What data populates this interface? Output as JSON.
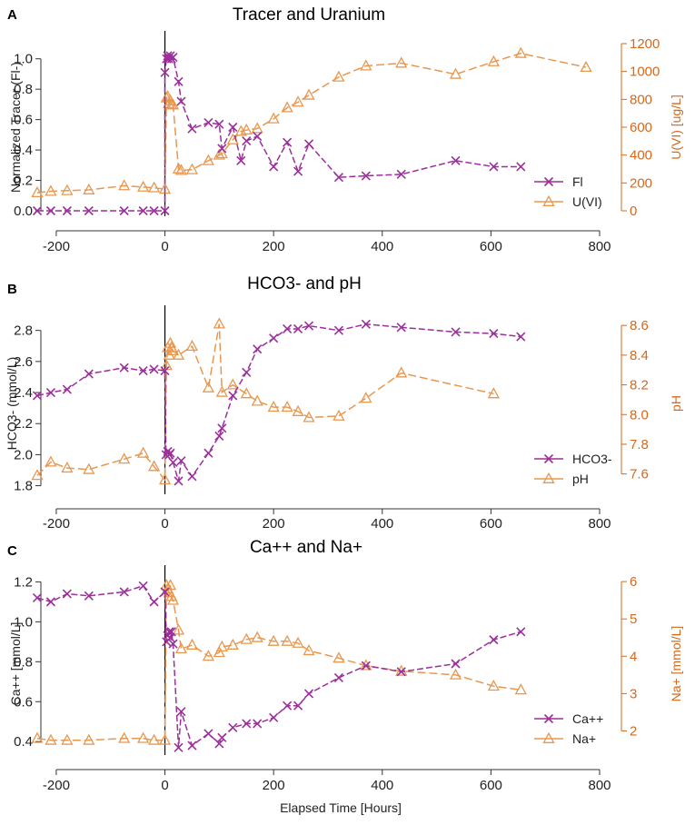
{
  "colors": {
    "primary": "#9b2f9b",
    "secondary": "#e8974f",
    "secondary_axis": "#d2691e",
    "vline": "#000000"
  },
  "xlabel": "Elapsed Time [Hours]",
  "chart_data": [
    {
      "type": "line",
      "letter": "A",
      "title": "Tracer and Uranium",
      "xlim": [
        -240,
        800
      ],
      "xticks": [
        -200,
        0,
        200,
        400,
        600,
        800
      ],
      "xtick_labels": [
        "-200",
        "0",
        "200",
        "400",
        "600",
        "800"
      ],
      "ylabel_left": "Normalized Tracer (Fl-)",
      "ylim_left": [
        0,
        1.1
      ],
      "yticks_left": [
        0.0,
        0.2,
        0.4,
        0.6,
        0.8,
        1.0
      ],
      "ytick_labels_left": [
        "0.0",
        "0.2",
        "0.4",
        "0.6",
        "0.8",
        "1.0"
      ],
      "ylabel_right": "U(VI) [ug/L]",
      "ylim_right": [
        0,
        1200
      ],
      "yticks_right": [
        0,
        200,
        400,
        600,
        800,
        1000,
        1200
      ],
      "ytick_labels_right": [
        "0",
        "200",
        "400",
        "600",
        "800",
        "1000",
        "1200"
      ],
      "legend_position": "bottom-right",
      "series": [
        {
          "name": "Fl",
          "axis": "left",
          "marker": "x",
          "x": [
            -235,
            -210,
            -180,
            -140,
            -75,
            -40,
            -20,
            0,
            0,
            3,
            5,
            7,
            10,
            12,
            15,
            25,
            30,
            50,
            80,
            100,
            105,
            125,
            140,
            150,
            170,
            200,
            225,
            245,
            265,
            320,
            370,
            435,
            535,
            605,
            655
          ],
          "y": [
            0.0,
            0.0,
            0.0,
            0.0,
            0.0,
            0.0,
            0.0,
            0.0,
            0.91,
            1.0,
            1.02,
            1.0,
            1.02,
            1.0,
            1.01,
            0.85,
            0.72,
            0.54,
            0.58,
            0.57,
            0.41,
            0.55,
            0.33,
            0.46,
            0.49,
            0.29,
            0.45,
            0.26,
            0.44,
            0.22,
            0.23,
            0.24,
            0.33,
            0.29,
            0.29
          ]
        },
        {
          "name": "U(VI)",
          "axis": "right",
          "marker": "triangle",
          "x": [
            -235,
            -210,
            -180,
            -140,
            -75,
            -40,
            -20,
            0,
            3,
            5,
            7,
            10,
            12,
            15,
            25,
            30,
            50,
            80,
            100,
            105,
            125,
            140,
            150,
            170,
            200,
            225,
            245,
            265,
            320,
            370,
            435,
            535,
            605,
            655,
            775
          ],
          "y": [
            130,
            140,
            145,
            150,
            180,
            170,
            165,
            155,
            810,
            820,
            770,
            790,
            760,
            760,
            300,
            290,
            295,
            360,
            400,
            410,
            510,
            570,
            580,
            590,
            660,
            740,
            780,
            830,
            960,
            1040,
            1060,
            980,
            1070,
            1130,
            1030
          ]
        }
      ]
    },
    {
      "type": "line",
      "letter": "B",
      "title": "HCO3- and pH",
      "xlim": [
        -240,
        800
      ],
      "xticks": [
        -200,
        0,
        200,
        400,
        600,
        800
      ],
      "xtick_labels": [
        "-200",
        "0",
        "200",
        "400",
        "600",
        "800"
      ],
      "ylabel_left": "HCO3- (mmol/L)",
      "ylim_left": [
        1.78,
        2.88
      ],
      "yticks_left": [
        1.8,
        2.0,
        2.2,
        2.4,
        2.6,
        2.8
      ],
      "ytick_labels_left": [
        "1.8",
        "2.0",
        "2.2",
        "2.4",
        "2.6",
        "2.8"
      ],
      "ylabel_right": "pH",
      "ylim_right": [
        7.5,
        8.65
      ],
      "yticks_right": [
        7.6,
        7.8,
        8.0,
        8.2,
        8.4,
        8.6
      ],
      "ytick_labels_right": [
        "7.6",
        "7.8",
        "8.0",
        "8.2",
        "8.4",
        "8.6"
      ],
      "legend_position": "bottom-right",
      "series": [
        {
          "name": "HCO3-",
          "axis": "left",
          "marker": "x",
          "x": [
            -235,
            -210,
            -180,
            -140,
            -75,
            -40,
            -20,
            0,
            2,
            5,
            8,
            10,
            15,
            25,
            30,
            50,
            80,
            100,
            105,
            125,
            150,
            170,
            200,
            225,
            245,
            265,
            320,
            370,
            435,
            535,
            605,
            655
          ],
          "y": [
            2.38,
            2.4,
            2.42,
            2.52,
            2.56,
            2.54,
            2.55,
            2.54,
            2.0,
            2.02,
            2.0,
            2.01,
            1.95,
            1.83,
            1.96,
            1.86,
            2.01,
            2.12,
            2.17,
            2.38,
            2.53,
            2.68,
            2.75,
            2.81,
            2.81,
            2.83,
            2.8,
            2.84,
            2.82,
            2.79,
            2.78,
            2.76
          ]
        },
        {
          "name": "pH",
          "axis": "right",
          "marker": "triangle",
          "x": [
            -235,
            -210,
            -180,
            -140,
            -75,
            -40,
            -20,
            0,
            3,
            5,
            8,
            10,
            12,
            15,
            25,
            50,
            80,
            100,
            105,
            125,
            150,
            170,
            200,
            225,
            245,
            265,
            320,
            370,
            435,
            605
          ],
          "y": [
            7.59,
            7.68,
            7.64,
            7.63,
            7.7,
            7.74,
            7.65,
            7.56,
            8.33,
            8.45,
            8.4,
            8.48,
            8.45,
            8.43,
            8.4,
            8.46,
            8.18,
            8.61,
            8.15,
            8.2,
            8.14,
            8.09,
            8.05,
            8.05,
            8.02,
            7.98,
            7.99,
            8.11,
            8.28,
            8.14
          ]
        }
      ]
    },
    {
      "type": "line",
      "letter": "C",
      "title": "Ca++ and Na+",
      "xlim": [
        -240,
        800
      ],
      "xticks": [
        -200,
        0,
        200,
        400,
        600,
        800
      ],
      "xtick_labels": [
        "-200",
        "0",
        "200",
        "400",
        "600",
        "800"
      ],
      "ylabel_left": "Ca++ [mmol/L]",
      "ylim_left": [
        0.36,
        1.22
      ],
      "yticks_left": [
        0.4,
        0.6,
        0.8,
        1.0,
        1.2
      ],
      "ytick_labels_left": [
        "0.4",
        "0.6",
        "0.8",
        "1.0",
        "1.2"
      ],
      "ylabel_right": "Na+ [mmol/L]",
      "ylim_right": [
        1.5,
        6.1
      ],
      "yticks_right": [
        2,
        3,
        4,
        5,
        6
      ],
      "ytick_labels_right": [
        "2",
        "3",
        "4",
        "5",
        "6"
      ],
      "legend_position": "bottom-right",
      "series": [
        {
          "name": "Ca++",
          "axis": "left",
          "marker": "x",
          "x": [
            -235,
            -210,
            -180,
            -140,
            -75,
            -40,
            -20,
            0,
            3,
            5,
            8,
            10,
            12,
            15,
            25,
            30,
            50,
            80,
            100,
            105,
            125,
            150,
            170,
            200,
            225,
            245,
            265,
            320,
            370,
            435,
            535,
            605,
            655
          ],
          "y": [
            1.12,
            1.1,
            1.14,
            1.13,
            1.15,
            1.18,
            1.1,
            1.15,
            0.9,
            0.93,
            0.95,
            0.92,
            0.95,
            0.89,
            0.37,
            0.55,
            0.38,
            0.44,
            0.39,
            0.42,
            0.47,
            0.49,
            0.49,
            0.52,
            0.58,
            0.58,
            0.64,
            0.72,
            0.78,
            0.75,
            0.79,
            0.91,
            0.95
          ]
        },
        {
          "name": "Na+",
          "axis": "right",
          "marker": "triangle",
          "x": [
            -235,
            -210,
            -180,
            -140,
            -75,
            -40,
            -20,
            0,
            3,
            5,
            8,
            10,
            12,
            15,
            25,
            30,
            50,
            80,
            100,
            105,
            125,
            150,
            170,
            200,
            225,
            245,
            265,
            320,
            370,
            435,
            535,
            605,
            655
          ],
          "y": [
            1.8,
            1.75,
            1.75,
            1.75,
            1.8,
            1.8,
            1.75,
            1.75,
            5.9,
            5.8,
            5.7,
            5.9,
            5.6,
            5.5,
            4.7,
            4.2,
            4.3,
            4.0,
            4.1,
            4.25,
            4.3,
            4.45,
            4.5,
            4.4,
            4.4,
            4.35,
            4.15,
            3.95,
            3.75,
            3.6,
            3.5,
            3.2,
            3.1
          ]
        }
      ]
    }
  ]
}
